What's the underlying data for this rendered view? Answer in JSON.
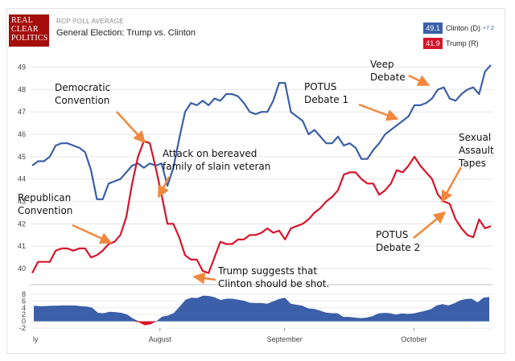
{
  "header": {
    "logo_lines": [
      "REAL",
      "CLEAR",
      "POLITICS"
    ],
    "supertitle": "RCP POLL AVERAGE",
    "title": "General Election: Trump vs. Clinton"
  },
  "legend": [
    {
      "value": "49.1",
      "label": "Clinton (D)",
      "change": "+7.2",
      "color": "#3b5fa8"
    },
    {
      "value": "41.9",
      "label": "Trump (R)",
      "change": "",
      "color": "#d7142a"
    }
  ],
  "chart_data": [
    {
      "type": "line",
      "ylim": [
        39.5,
        49.2
      ],
      "yticks": [
        40,
        41,
        42,
        43,
        44,
        45,
        46,
        47,
        48,
        49
      ],
      "xlim": [
        0,
        100
      ],
      "xticks": [
        {
          "x": 0.5,
          "label": "ly"
        },
        {
          "x": 28,
          "label": "August"
        },
        {
          "x": 55,
          "label": "September"
        },
        {
          "x": 83,
          "label": "October"
        }
      ],
      "grid": true,
      "series": [
        {
          "name": "Clinton (D)",
          "color": "#3b5fa8",
          "points": [
            [
              0,
              44.6
            ],
            [
              1,
              44.8
            ],
            [
              2,
              44.8
            ],
            [
              3,
              45.0
            ],
            [
              4,
              45.5
            ],
            [
              5,
              45.6
            ],
            [
              6,
              45.6
            ],
            [
              7,
              45.5
            ],
            [
              8,
              45.4
            ],
            [
              9,
              45.2
            ],
            [
              10,
              44.4
            ],
            [
              11,
              43.1
            ],
            [
              12,
              43.1
            ],
            [
              13,
              43.8
            ],
            [
              14,
              43.9
            ],
            [
              15,
              44.0
            ],
            [
              16,
              44.3
            ],
            [
              17,
              44.6
            ],
            [
              18,
              44.7
            ],
            [
              19,
              44.5
            ],
            [
              20,
              44.7
            ],
            [
              21,
              44.6
            ],
            [
              22,
              44.7
            ],
            [
              23,
              43.7
            ],
            [
              24,
              44.5
            ],
            [
              25,
              45.8
            ],
            [
              26,
              47.0
            ],
            [
              27,
              47.4
            ],
            [
              28,
              47.3
            ],
            [
              29,
              47.5
            ],
            [
              30,
              47.3
            ],
            [
              31,
              47.6
            ],
            [
              32,
              47.5
            ],
            [
              33,
              47.8
            ],
            [
              34,
              47.8
            ],
            [
              35,
              47.7
            ],
            [
              36,
              47.4
            ],
            [
              37,
              47.0
            ],
            [
              38,
              46.9
            ],
            [
              39,
              47.0
            ],
            [
              40,
              47.0
            ],
            [
              41,
              47.5
            ],
            [
              42,
              48.3
            ],
            [
              43,
              48.3
            ],
            [
              44,
              47.0
            ],
            [
              45,
              46.8
            ],
            [
              46,
              46.6
            ],
            [
              47,
              46.0
            ],
            [
              48,
              46.2
            ],
            [
              49,
              45.9
            ],
            [
              50,
              45.6
            ],
            [
              51,
              45.6
            ],
            [
              52,
              45.9
            ],
            [
              53,
              45.5
            ],
            [
              54,
              45.6
            ],
            [
              55,
              45.4
            ],
            [
              56,
              44.9
            ],
            [
              57,
              44.9
            ],
            [
              58,
              45.3
            ],
            [
              59,
              45.6
            ],
            [
              60,
              46.0
            ],
            [
              61,
              46.2
            ],
            [
              62,
              46.4
            ],
            [
              63,
              46.6
            ],
            [
              64,
              46.8
            ],
            [
              65,
              47.3
            ],
            [
              66,
              47.3
            ],
            [
              67,
              47.4
            ],
            [
              68,
              47.6
            ],
            [
              69,
              48.0
            ],
            [
              70,
              48.1
            ],
            [
              71,
              47.6
            ],
            [
              72,
              47.5
            ],
            [
              73,
              47.8
            ],
            [
              74,
              48.0
            ],
            [
              75,
              48.1
            ],
            [
              76,
              47.8
            ],
            [
              77,
              48.8
            ],
            [
              78,
              49.1
            ]
          ]
        },
        {
          "name": "Trump (R)",
          "color": "#d7142a",
          "points": [
            [
              0,
              39.8
            ],
            [
              1,
              40.3
            ],
            [
              2,
              40.3
            ],
            [
              3,
              40.3
            ],
            [
              4,
              40.8
            ],
            [
              5,
              40.9
            ],
            [
              6,
              40.9
            ],
            [
              7,
              40.8
            ],
            [
              8,
              40.9
            ],
            [
              9,
              40.9
            ],
            [
              10,
              40.5
            ],
            [
              11,
              40.6
            ],
            [
              12,
              40.8
            ],
            [
              13,
              41.1
            ],
            [
              14,
              41.2
            ],
            [
              15,
              41.5
            ],
            [
              16,
              42.3
            ],
            [
              17,
              43.8
            ],
            [
              18,
              45.0
            ],
            [
              19,
              45.7
            ],
            [
              20,
              45.6
            ],
            [
              21,
              44.5
            ],
            [
              22,
              43.3
            ],
            [
              23,
              42.0
            ],
            [
              24,
              42.0
            ],
            [
              25,
              41.4
            ],
            [
              26,
              40.6
            ],
            [
              27,
              40.4
            ],
            [
              28,
              40.4
            ],
            [
              29,
              39.9
            ],
            [
              30,
              39.8
            ],
            [
              31,
              40.5
            ],
            [
              32,
              41.2
            ],
            [
              33,
              41.1
            ],
            [
              34,
              41.1
            ],
            [
              35,
              41.3
            ],
            [
              36,
              41.3
            ],
            [
              37,
              41.5
            ],
            [
              38,
              41.5
            ],
            [
              39,
              41.6
            ],
            [
              40,
              41.8
            ],
            [
              41,
              41.6
            ],
            [
              42,
              41.7
            ],
            [
              43,
              41.3
            ],
            [
              44,
              41.8
            ],
            [
              45,
              41.9
            ],
            [
              46,
              42.0
            ],
            [
              47,
              42.2
            ],
            [
              48,
              42.5
            ],
            [
              49,
              42.7
            ],
            [
              50,
              43.0
            ],
            [
              51,
              43.2
            ],
            [
              52,
              43.5
            ],
            [
              53,
              44.2
            ],
            [
              54,
              44.3
            ],
            [
              55,
              44.3
            ],
            [
              56,
              44.0
            ],
            [
              57,
              43.8
            ],
            [
              58,
              43.8
            ],
            [
              59,
              43.3
            ],
            [
              60,
              43.5
            ],
            [
              61,
              43.8
            ],
            [
              62,
              44.4
            ],
            [
              63,
              44.3
            ],
            [
              64,
              44.6
            ],
            [
              65,
              45.0
            ],
            [
              66,
              44.6
            ],
            [
              67,
              44.3
            ],
            [
              68,
              44.0
            ],
            [
              69,
              43.3
            ],
            [
              70,
              43.0
            ],
            [
              71,
              42.9
            ],
            [
              72,
              42.2
            ],
            [
              73,
              41.8
            ],
            [
              74,
              41.5
            ],
            [
              75,
              41.4
            ],
            [
              76,
              42.2
            ],
            [
              77,
              41.8
            ],
            [
              78,
              41.9
            ]
          ]
        }
      ],
      "annotations": [
        {
          "lines": [
            "Democratic",
            "Convention"
          ]
        },
        {
          "lines": [
            "Attack on bereaved",
            "family of slain veteran"
          ]
        },
        {
          "lines": [
            "Republican",
            "Convention"
          ]
        },
        {
          "lines": [
            "Trump suggests that",
            "Clinton should be shot."
          ]
        },
        {
          "lines": [
            "POTUS",
            "Debate 1"
          ]
        },
        {
          "lines": [
            "Veep",
            "Debate"
          ]
        },
        {
          "lines": [
            "Sexual",
            "Assault",
            "Tapes"
          ]
        },
        {
          "lines": [
            "POTUS",
            "Debate 2"
          ]
        }
      ]
    },
    {
      "type": "area",
      "ylim": [
        -2,
        8
      ],
      "yticks": [
        -2,
        0,
        2,
        4,
        6,
        8
      ],
      "positive_color": "#3b5fa8",
      "negative_color": "#d7142a",
      "values": [
        4.6,
        4.5,
        4.5,
        4.6,
        4.6,
        4.7,
        4.7,
        4.7,
        4.5,
        4.4,
        4.0,
        2.5,
        2.4,
        2.8,
        2.7,
        2.5,
        2.0,
        0.8,
        -0.3,
        -1.2,
        -0.9,
        0.1,
        1.4,
        1.7,
        2.5,
        4.4,
        6.4,
        7.0,
        6.9,
        7.6,
        7.5,
        7.1,
        6.3,
        6.7,
        6.7,
        6.4,
        6.1,
        5.5,
        5.4,
        5.4,
        5.2,
        5.9,
        6.6,
        7.0,
        5.2,
        4.9,
        4.6,
        3.8,
        3.7,
        3.2,
        2.6,
        2.4,
        2.4,
        1.3,
        1.3,
        1.1,
        0.9,
        1.1,
        1.5,
        2.3,
        2.5,
        2.4,
        2.0,
        2.3,
        2.2,
        2.3,
        2.7,
        3.1,
        3.6,
        4.7,
        5.1,
        4.7,
        5.3,
        6.2,
        6.6,
        6.7,
        5.6,
        7.0,
        7.2
      ]
    }
  ]
}
